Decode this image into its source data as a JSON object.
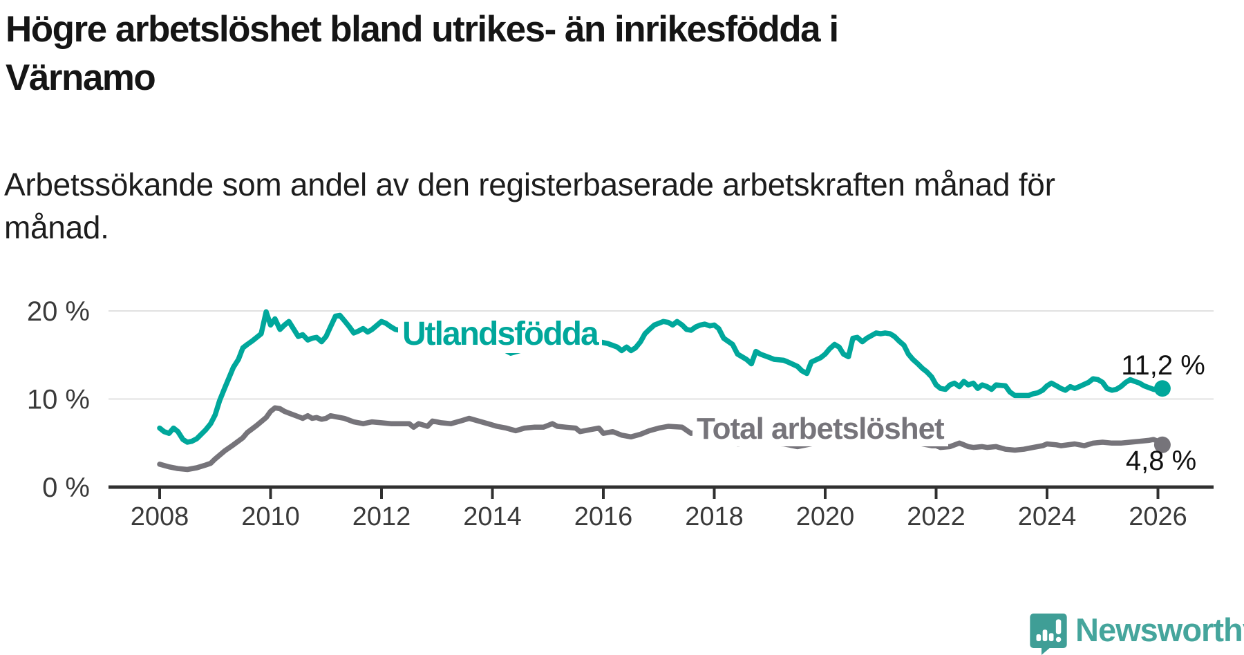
{
  "header": {
    "title_line1": "Högre arbetslöshet bland utrikes- än inrikesfödda i",
    "title_line2": "Värnamo",
    "subtitle_line1": "Arbetssökande som andel av den registerbaserade arbetskraften månad för",
    "subtitle_line2": "månad."
  },
  "colors": {
    "series_foreign_born": "#00a79b",
    "series_total": "#76747a",
    "gridline": "#e1e1e1",
    "axis": "#303030",
    "tick_text": "#3a3a3a",
    "value_text": "#111111",
    "logo_teal": "#45a59c"
  },
  "logo": {
    "text": "Newsworthy",
    "icon": "newsworthy-bar-chart-bubble"
  },
  "chart_data": {
    "type": "line",
    "title": "Högre arbetslöshet bland utrikes- än inrikesfödda i Värnamo",
    "subtitle": "Arbetssökande som andel av den registerbaserade arbetskraften månad för månad.",
    "xlabel": "",
    "ylabel": "",
    "xlim": [
      2007.1,
      2027.0
    ],
    "ylim": [
      0,
      21.6
    ],
    "grid": "horizontal",
    "legend_position": "inline-on-line",
    "x_ticks": [
      2008,
      2010,
      2012,
      2014,
      2016,
      2018,
      2020,
      2022,
      2024,
      2026
    ],
    "y_ticks": [
      {
        "value": 0,
        "label": "0 %"
      },
      {
        "value": 10,
        "label": "10 %"
      },
      {
        "value": 20,
        "label": "20 %"
      }
    ],
    "series": [
      {
        "name": "Utlandsfödda",
        "color": "#00a79b",
        "end_value_label": "11,2 %",
        "end_point": [
          2026.08,
          11.2
        ],
        "points": [
          [
            2008.0,
            6.7
          ],
          [
            2008.08,
            6.3
          ],
          [
            2008.17,
            6.1
          ],
          [
            2008.25,
            6.7
          ],
          [
            2008.33,
            6.3
          ],
          [
            2008.42,
            5.4
          ],
          [
            2008.5,
            5.1
          ],
          [
            2008.58,
            5.2
          ],
          [
            2008.67,
            5.5
          ],
          [
            2008.83,
            6.5
          ],
          [
            2008.92,
            7.2
          ],
          [
            2009.0,
            8.2
          ],
          [
            2009.08,
            9.8
          ],
          [
            2009.17,
            11.2
          ],
          [
            2009.25,
            12.4
          ],
          [
            2009.33,
            13.6
          ],
          [
            2009.42,
            14.5
          ],
          [
            2009.5,
            15.8
          ],
          [
            2009.58,
            16.2
          ],
          [
            2009.67,
            16.6
          ],
          [
            2009.75,
            17.0
          ],
          [
            2009.83,
            17.4
          ],
          [
            2009.92,
            19.9
          ],
          [
            2010.0,
            18.4
          ],
          [
            2010.08,
            19.1
          ],
          [
            2010.17,
            17.9
          ],
          [
            2010.25,
            18.4
          ],
          [
            2010.33,
            18.8
          ],
          [
            2010.42,
            17.9
          ],
          [
            2010.5,
            17.1
          ],
          [
            2010.58,
            17.3
          ],
          [
            2010.67,
            16.7
          ],
          [
            2010.75,
            16.9
          ],
          [
            2010.83,
            17.0
          ],
          [
            2010.92,
            16.5
          ],
          [
            2011.0,
            17.1
          ],
          [
            2011.08,
            18.2
          ],
          [
            2011.17,
            19.4
          ],
          [
            2011.25,
            19.5
          ],
          [
            2011.33,
            18.9
          ],
          [
            2011.42,
            18.2
          ],
          [
            2011.5,
            17.5
          ],
          [
            2011.58,
            17.7
          ],
          [
            2011.67,
            18.0
          ],
          [
            2011.75,
            17.6
          ],
          [
            2011.83,
            17.9
          ],
          [
            2012.0,
            18.8
          ],
          [
            2012.08,
            18.6
          ],
          [
            2012.17,
            18.2
          ],
          [
            2012.25,
            17.9
          ],
          [
            2012.33,
            17.8
          ],
          [
            2012.42,
            17.9
          ],
          [
            2012.75,
            17.8
          ],
          [
            2013.0,
            17.6
          ],
          [
            2013.5,
            17.3
          ],
          [
            2014.0,
            16.3
          ],
          [
            2014.33,
            15.2
          ],
          [
            2014.67,
            15.8
          ],
          [
            2015.0,
            16.4
          ],
          [
            2015.5,
            16.8
          ],
          [
            2015.83,
            17.1
          ],
          [
            2015.92,
            16.5
          ],
          [
            2016.08,
            16.3
          ],
          [
            2016.25,
            15.9
          ],
          [
            2016.33,
            15.5
          ],
          [
            2016.42,
            15.9
          ],
          [
            2016.5,
            15.5
          ],
          [
            2016.58,
            15.8
          ],
          [
            2016.67,
            16.5
          ],
          [
            2016.75,
            17.4
          ],
          [
            2016.83,
            17.9
          ],
          [
            2016.92,
            18.4
          ],
          [
            2017.0,
            18.6
          ],
          [
            2017.08,
            18.8
          ],
          [
            2017.17,
            18.7
          ],
          [
            2017.25,
            18.4
          ],
          [
            2017.33,
            18.8
          ],
          [
            2017.42,
            18.4
          ],
          [
            2017.5,
            17.9
          ],
          [
            2017.58,
            17.8
          ],
          [
            2017.67,
            18.2
          ],
          [
            2017.75,
            18.4
          ],
          [
            2017.83,
            18.5
          ],
          [
            2017.92,
            18.3
          ],
          [
            2018.0,
            18.4
          ],
          [
            2018.08,
            18.0
          ],
          [
            2018.17,
            16.9
          ],
          [
            2018.33,
            16.2
          ],
          [
            2018.42,
            15.1
          ],
          [
            2018.58,
            14.5
          ],
          [
            2018.67,
            14.0
          ],
          [
            2018.75,
            15.4
          ],
          [
            2018.83,
            15.1
          ],
          [
            2019.0,
            14.7
          ],
          [
            2019.08,
            14.5
          ],
          [
            2019.25,
            14.4
          ],
          [
            2019.33,
            14.2
          ],
          [
            2019.5,
            13.7
          ],
          [
            2019.58,
            13.2
          ],
          [
            2019.67,
            12.9
          ],
          [
            2019.75,
            14.2
          ],
          [
            2019.92,
            14.7
          ],
          [
            2020.0,
            15.1
          ],
          [
            2020.08,
            15.7
          ],
          [
            2020.17,
            16.2
          ],
          [
            2020.25,
            15.9
          ],
          [
            2020.33,
            15.1
          ],
          [
            2020.42,
            14.8
          ],
          [
            2020.5,
            16.9
          ],
          [
            2020.58,
            17.0
          ],
          [
            2020.67,
            16.5
          ],
          [
            2020.75,
            16.9
          ],
          [
            2020.92,
            17.5
          ],
          [
            2021.0,
            17.4
          ],
          [
            2021.08,
            17.5
          ],
          [
            2021.17,
            17.4
          ],
          [
            2021.25,
            17.1
          ],
          [
            2021.33,
            16.6
          ],
          [
            2021.42,
            16.1
          ],
          [
            2021.5,
            15.1
          ],
          [
            2021.58,
            14.5
          ],
          [
            2021.67,
            14.0
          ],
          [
            2021.75,
            13.5
          ],
          [
            2021.83,
            13.1
          ],
          [
            2021.92,
            12.5
          ],
          [
            2022.0,
            11.6
          ],
          [
            2022.08,
            11.2
          ],
          [
            2022.17,
            11.1
          ],
          [
            2022.25,
            11.6
          ],
          [
            2022.33,
            11.8
          ],
          [
            2022.42,
            11.4
          ],
          [
            2022.5,
            12.0
          ],
          [
            2022.58,
            11.6
          ],
          [
            2022.67,
            11.8
          ],
          [
            2022.75,
            11.2
          ],
          [
            2022.83,
            11.6
          ],
          [
            2022.92,
            11.4
          ],
          [
            2023.0,
            11.1
          ],
          [
            2023.08,
            11.6
          ],
          [
            2023.25,
            11.5
          ],
          [
            2023.33,
            10.8
          ],
          [
            2023.42,
            10.4
          ],
          [
            2023.58,
            10.4
          ],
          [
            2023.67,
            10.4
          ],
          [
            2023.75,
            10.6
          ],
          [
            2023.83,
            10.7
          ],
          [
            2023.92,
            11.0
          ],
          [
            2024.0,
            11.5
          ],
          [
            2024.08,
            11.8
          ],
          [
            2024.17,
            11.5
          ],
          [
            2024.25,
            11.2
          ],
          [
            2024.33,
            11.0
          ],
          [
            2024.42,
            11.4
          ],
          [
            2024.5,
            11.2
          ],
          [
            2024.58,
            11.4
          ],
          [
            2024.75,
            11.9
          ],
          [
            2024.83,
            12.3
          ],
          [
            2024.92,
            12.2
          ],
          [
            2025.0,
            11.9
          ],
          [
            2025.08,
            11.2
          ],
          [
            2025.17,
            11.0
          ],
          [
            2025.25,
            11.1
          ],
          [
            2025.33,
            11.4
          ],
          [
            2025.42,
            11.9
          ],
          [
            2025.5,
            12.2
          ],
          [
            2025.58,
            12.0
          ],
          [
            2025.67,
            11.8
          ],
          [
            2025.75,
            11.5
          ],
          [
            2025.83,
            11.3
          ],
          [
            2025.92,
            11.1
          ],
          [
            2026.0,
            11.0
          ],
          [
            2026.08,
            11.2
          ]
        ]
      },
      {
        "name": "Total arbetslöshet",
        "color": "#76747a",
        "end_value_label": "4,8 %",
        "end_point": [
          2026.08,
          4.8
        ],
        "points": [
          [
            2008.0,
            2.6
          ],
          [
            2008.17,
            2.3
          ],
          [
            2008.33,
            2.1
          ],
          [
            2008.5,
            2.0
          ],
          [
            2008.67,
            2.2
          ],
          [
            2008.83,
            2.5
          ],
          [
            2008.92,
            2.7
          ],
          [
            2009.0,
            3.2
          ],
          [
            2009.17,
            4.1
          ],
          [
            2009.33,
            4.8
          ],
          [
            2009.5,
            5.6
          ],
          [
            2009.58,
            6.2
          ],
          [
            2009.75,
            7.0
          ],
          [
            2009.92,
            7.9
          ],
          [
            2010.0,
            8.6
          ],
          [
            2010.08,
            9.0
          ],
          [
            2010.17,
            8.9
          ],
          [
            2010.25,
            8.6
          ],
          [
            2010.33,
            8.4
          ],
          [
            2010.5,
            8.0
          ],
          [
            2010.58,
            7.8
          ],
          [
            2010.67,
            8.1
          ],
          [
            2010.75,
            7.8
          ],
          [
            2010.83,
            7.9
          ],
          [
            2010.92,
            7.7
          ],
          [
            2011.0,
            7.8
          ],
          [
            2011.08,
            8.1
          ],
          [
            2011.25,
            7.9
          ],
          [
            2011.33,
            7.8
          ],
          [
            2011.5,
            7.4
          ],
          [
            2011.67,
            7.2
          ],
          [
            2011.83,
            7.4
          ],
          [
            2012.0,
            7.3
          ],
          [
            2012.17,
            7.2
          ],
          [
            2012.33,
            7.2
          ],
          [
            2012.5,
            7.2
          ],
          [
            2012.58,
            6.8
          ],
          [
            2012.67,
            7.2
          ],
          [
            2012.83,
            6.9
          ],
          [
            2012.92,
            7.5
          ],
          [
            2013.08,
            7.3
          ],
          [
            2013.25,
            7.2
          ],
          [
            2013.42,
            7.5
          ],
          [
            2013.58,
            7.8
          ],
          [
            2013.75,
            7.5
          ],
          [
            2013.92,
            7.2
          ],
          [
            2014.08,
            6.9
          ],
          [
            2014.25,
            6.7
          ],
          [
            2014.42,
            6.4
          ],
          [
            2014.58,
            6.7
          ],
          [
            2014.75,
            6.8
          ],
          [
            2014.92,
            6.8
          ],
          [
            2015.08,
            7.2
          ],
          [
            2015.17,
            6.9
          ],
          [
            2015.33,
            6.8
          ],
          [
            2015.5,
            6.7
          ],
          [
            2015.58,
            6.3
          ],
          [
            2015.75,
            6.5
          ],
          [
            2015.92,
            6.7
          ],
          [
            2016.0,
            6.1
          ],
          [
            2016.17,
            6.3
          ],
          [
            2016.33,
            5.9
          ],
          [
            2016.5,
            5.7
          ],
          [
            2016.67,
            6.0
          ],
          [
            2016.83,
            6.4
          ],
          [
            2017.0,
            6.7
          ],
          [
            2017.17,
            6.9
          ],
          [
            2017.42,
            6.8
          ],
          [
            2017.58,
            6.1
          ],
          [
            2017.75,
            6.3
          ],
          [
            2017.83,
            6.2
          ],
          [
            2018.17,
            5.6
          ],
          [
            2018.42,
            4.9
          ],
          [
            2018.67,
            5.0
          ],
          [
            2019.0,
            5.0
          ],
          [
            2019.25,
            4.9
          ],
          [
            2019.5,
            4.6
          ],
          [
            2019.75,
            4.9
          ],
          [
            2020.0,
            5.3
          ],
          [
            2020.25,
            6.6
          ],
          [
            2020.42,
            7.2
          ],
          [
            2020.58,
            7.0
          ],
          [
            2020.75,
            6.6
          ],
          [
            2021.0,
            6.2
          ],
          [
            2021.25,
            5.8
          ],
          [
            2021.5,
            5.3
          ],
          [
            2021.75,
            4.9
          ],
          [
            2021.92,
            4.7
          ],
          [
            2022.0,
            4.7
          ],
          [
            2022.08,
            4.5
          ],
          [
            2022.25,
            4.6
          ],
          [
            2022.42,
            5.0
          ],
          [
            2022.5,
            4.8
          ],
          [
            2022.58,
            4.6
          ],
          [
            2022.67,
            4.5
          ],
          [
            2022.83,
            4.6
          ],
          [
            2022.92,
            4.5
          ],
          [
            2023.08,
            4.6
          ],
          [
            2023.25,
            4.3
          ],
          [
            2023.42,
            4.2
          ],
          [
            2023.58,
            4.3
          ],
          [
            2023.75,
            4.5
          ],
          [
            2023.92,
            4.7
          ],
          [
            2024.0,
            4.9
          ],
          [
            2024.17,
            4.8
          ],
          [
            2024.25,
            4.7
          ],
          [
            2024.5,
            4.9
          ],
          [
            2024.67,
            4.7
          ],
          [
            2024.83,
            5.0
          ],
          [
            2025.0,
            5.1
          ],
          [
            2025.17,
            5.0
          ],
          [
            2025.33,
            5.0
          ],
          [
            2025.5,
            5.1
          ],
          [
            2025.67,
            5.2
          ],
          [
            2025.83,
            5.3
          ],
          [
            2025.92,
            5.4
          ],
          [
            2026.0,
            5.2
          ],
          [
            2026.08,
            4.8
          ]
        ]
      }
    ]
  }
}
